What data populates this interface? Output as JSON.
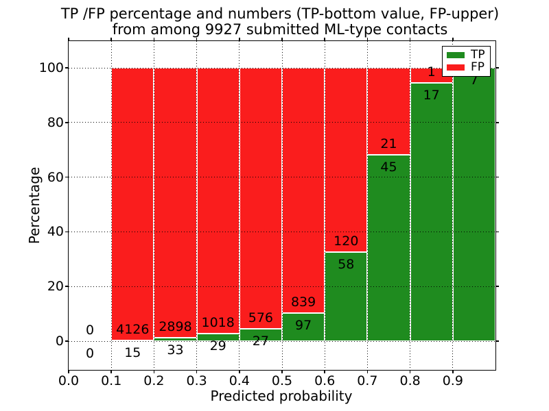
{
  "chart_data": {
    "type": "bar",
    "subtype": "stacked-percentage-histogram",
    "title_line1": "TP /FP percentage and numbers (TP-bottom value, FP-upper)",
    "title_line2": "from among 9927 submitted ML-type contacts",
    "xlabel": "Predicted probability",
    "ylabel": "Percentage",
    "xlim": [
      0.0,
      1.0
    ],
    "ylim": [
      -10.5,
      110.5
    ],
    "grid": "dotted-black",
    "legend_position": "upper-right",
    "colors": {
      "tp": "#1f8b1f",
      "fp": "#fa1d1d",
      "bar_edge": "#ffffff"
    },
    "legend": {
      "entries": [
        {
          "label": "TP",
          "color": "#1f8b1f"
        },
        {
          "label": "FP",
          "color": "#fa1d1d"
        }
      ]
    },
    "x_ticks": [
      {
        "label": "0.0",
        "value": 0.0
      },
      {
        "label": "0.1",
        "value": 0.1
      },
      {
        "label": "0.2",
        "value": 0.2
      },
      {
        "label": "0.3",
        "value": 0.3
      },
      {
        "label": "0.4",
        "value": 0.4
      },
      {
        "label": "0.5",
        "value": 0.5
      },
      {
        "label": "0.6",
        "value": 0.6
      },
      {
        "label": "0.7",
        "value": 0.7
      },
      {
        "label": "0.8",
        "value": 0.8
      },
      {
        "label": "0.9",
        "value": 0.9
      }
    ],
    "y_ticks": [
      {
        "label": "0",
        "value": 0
      },
      {
        "label": "20",
        "value": 20
      },
      {
        "label": "40",
        "value": 40
      },
      {
        "label": "60",
        "value": 60
      },
      {
        "label": "80",
        "value": 80
      },
      {
        "label": "100",
        "value": 100
      }
    ],
    "bins": [
      {
        "range": [
          0.0,
          0.1
        ],
        "tp": 0,
        "fp": 0,
        "tp_label": "0",
        "fp_label": "0",
        "tp_pct": 0
      },
      {
        "range": [
          0.1,
          0.2
        ],
        "tp": 15,
        "fp": 4126,
        "tp_label": "15",
        "fp_label": "4126",
        "tp_pct": 0.36
      },
      {
        "range": [
          0.2,
          0.3
        ],
        "tp": 33,
        "fp": 2898,
        "tp_label": "33",
        "fp_label": "2898",
        "tp_pct": 1.13
      },
      {
        "range": [
          0.3,
          0.4
        ],
        "tp": 29,
        "fp": 1018,
        "tp_label": "29",
        "fp_label": "1018",
        "tp_pct": 2.77
      },
      {
        "range": [
          0.4,
          0.5
        ],
        "tp": 27,
        "fp": 576,
        "tp_label": "27",
        "fp_label": "576",
        "tp_pct": 4.48
      },
      {
        "range": [
          0.5,
          0.6
        ],
        "tp": 97,
        "fp": 839,
        "tp_label": "97",
        "fp_label": "839",
        "tp_pct": 10.36
      },
      {
        "range": [
          0.6,
          0.7
        ],
        "tp": 58,
        "fp": 120,
        "tp_label": "58",
        "fp_label": "120",
        "tp_pct": 32.58
      },
      {
        "range": [
          0.7,
          0.8
        ],
        "tp": 45,
        "fp": 21,
        "tp_label": "45",
        "fp_label": "21",
        "tp_pct": 68.18
      },
      {
        "range": [
          0.8,
          0.9
        ],
        "tp": 17,
        "fp": 1,
        "tp_label": "17",
        "fp_label": "1",
        "tp_pct": 94.44
      },
      {
        "range": [
          0.9,
          1.0
        ],
        "tp": 7,
        "fp": 0,
        "tp_label": "7",
        "fp_label": "0",
        "tp_pct": 100
      }
    ]
  }
}
